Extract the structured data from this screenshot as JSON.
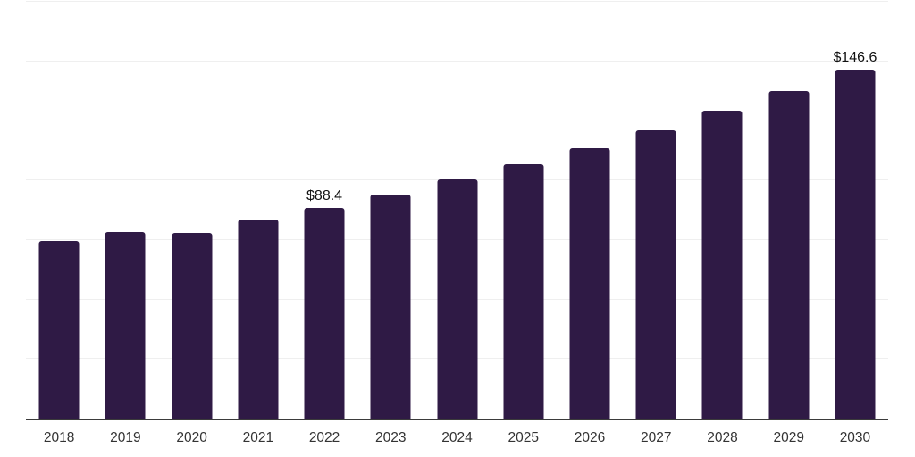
{
  "chart_data": {
    "type": "bar",
    "title": "",
    "xlabel": "",
    "ylabel": "",
    "value_unit_prefix": "$",
    "categories": [
      "2018",
      "2019",
      "2020",
      "2021",
      "2022",
      "2023",
      "2024",
      "2025",
      "2026",
      "2027",
      "2028",
      "2029",
      "2030"
    ],
    "values": [
      74.6,
      78.4,
      77.9,
      83.6,
      88.4,
      94.2,
      100.3,
      106.9,
      113.7,
      121.2,
      129.2,
      137.6,
      146.6
    ],
    "labeled_points": [
      {
        "category": "2022",
        "label": "$88.4"
      },
      {
        "category": "2030",
        "label": "$146.6"
      }
    ],
    "ylim": [
      0,
      175
    ],
    "gridline_step": 25,
    "grid": "horizontal, light, on",
    "legend": "none",
    "axis_tick_labels_y": "none (no visible y-axis labels)",
    "colors": {
      "bar_fill": "#2f1a45",
      "axis_line": "#3b3b3b",
      "gridline": "#efefef",
      "x_tick_label": "#333333",
      "data_label": "#111111",
      "background": "#ffffff"
    }
  }
}
